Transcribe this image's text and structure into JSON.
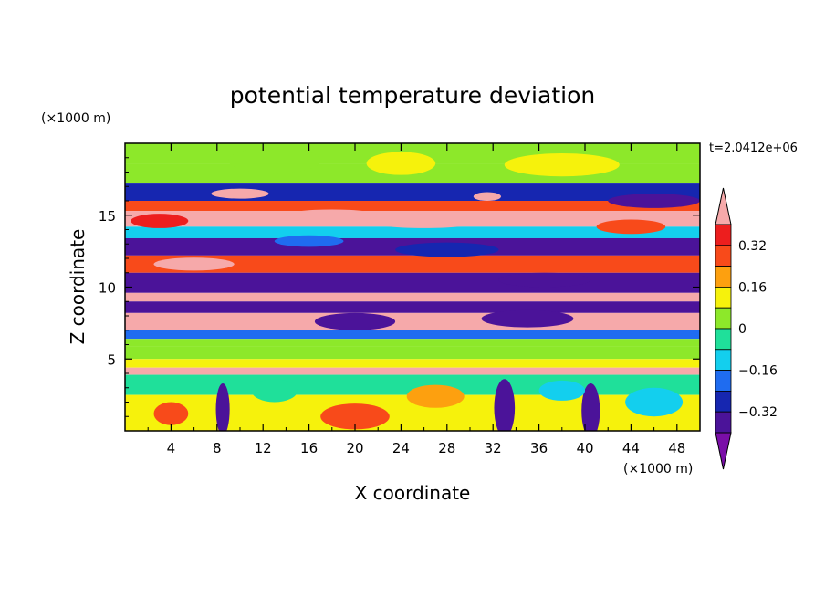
{
  "chart_data": {
    "type": "heatmap",
    "title": "potential temperature deviation",
    "xlabel": "X coordinate",
    "ylabel": "Z coordinate",
    "x_unit": "(×1000 m)",
    "y_unit": "(×1000 m)",
    "time_label": "t=2.0412e+06",
    "xlim": [
      0,
      50
    ],
    "ylim": [
      0,
      20
    ],
    "x_ticks": [
      "4",
      "8",
      "12",
      "16",
      "20",
      "24",
      "28",
      "32",
      "36",
      "40",
      "44",
      "48"
    ],
    "y_ticks": [
      "5",
      "10",
      "15"
    ],
    "colorbar": {
      "tick_labels": [
        "0.32",
        "0.16",
        "0",
        "−0.16",
        "−0.32"
      ],
      "levels": [
        -0.4,
        -0.32,
        -0.24,
        -0.16,
        -0.08,
        0,
        0.08,
        0.16,
        0.24,
        0.32,
        0.4
      ],
      "colors": [
        "#7a0ea8",
        "#4b1399",
        "#1626b0",
        "#1f6cf0",
        "#13cfee",
        "#1fe09a",
        "#8de82a",
        "#f6f20c",
        "#fda00f",
        "#f84a1a",
        "#ed1e1e",
        "#f6a9aa"
      ]
    },
    "bands": [
      {
        "z_top": 20.0,
        "z_bottom": 18.6,
        "value": 0.05
      },
      {
        "z_top": 18.6,
        "z_bottom": 17.2,
        "value": 0.02
      },
      {
        "z_top": 17.2,
        "z_bottom": 16.0,
        "value": -0.3
      },
      {
        "z_top": 16.0,
        "z_bottom": 15.3,
        "value": 0.3
      },
      {
        "z_top": 15.3,
        "z_bottom": 14.2,
        "value": 0.42
      },
      {
        "z_top": 14.2,
        "z_bottom": 13.4,
        "value": -0.12
      },
      {
        "z_top": 13.4,
        "z_bottom": 12.2,
        "value": -0.38
      },
      {
        "z_top": 12.2,
        "z_bottom": 11.0,
        "value": 0.25
      },
      {
        "z_top": 11.0,
        "z_bottom": 9.6,
        "value": -0.36
      },
      {
        "z_top": 9.6,
        "z_bottom": 9.0,
        "value": 0.42
      },
      {
        "z_top": 9.0,
        "z_bottom": 8.2,
        "value": -0.34
      },
      {
        "z_top": 8.2,
        "z_bottom": 7.0,
        "value": 0.42
      },
      {
        "z_top": 7.0,
        "z_bottom": 6.4,
        "value": -0.2
      },
      {
        "z_top": 6.4,
        "z_bottom": 5.9,
        "value": 0.06
      },
      {
        "z_top": 5.9,
        "z_bottom": 5.0,
        "value": 0.05
      },
      {
        "z_top": 5.0,
        "z_bottom": 4.4,
        "value": 0.08
      },
      {
        "z_top": 4.4,
        "z_bottom": 3.9,
        "value": 0.42
      },
      {
        "z_top": 3.9,
        "z_bottom": 2.5,
        "value": -0.02
      },
      {
        "z_top": 2.5,
        "z_bottom": 0.0,
        "value": 0.1
      }
    ],
    "features": [
      {
        "x": 6.0,
        "z": 11.6,
        "rx": 3.5,
        "rz": 0.45,
        "value": 0.42
      },
      {
        "x": 18.0,
        "z": 15.0,
        "rx": 4.0,
        "rz": 0.4,
        "value": 0.42
      },
      {
        "x": 26.0,
        "z": 14.6,
        "rx": 5.0,
        "rz": 0.5,
        "value": 0.42
      },
      {
        "x": 10.0,
        "z": 16.5,
        "rx": 2.5,
        "rz": 0.35,
        "value": 0.42
      },
      {
        "x": 31.5,
        "z": 16.3,
        "rx": 1.2,
        "rz": 0.3,
        "value": 0.42
      },
      {
        "x": 36.5,
        "z": 10.5,
        "rx": 4.0,
        "rz": 0.5,
        "value": -0.38
      },
      {
        "x": 44.0,
        "z": 14.2,
        "rx": 3.0,
        "rz": 0.5,
        "value": 0.28
      },
      {
        "x": 46.0,
        "z": 16.0,
        "rx": 4.0,
        "rz": 0.5,
        "value": -0.38
      },
      {
        "x": 24.0,
        "z": 18.6,
        "rx": 3.0,
        "rz": 0.8,
        "value": 0.08
      },
      {
        "x": 13.0,
        "z": 18.8,
        "rx": 4.0,
        "rz": 0.9,
        "value": 0.02
      },
      {
        "x": 38.0,
        "z": 18.5,
        "rx": 5.0,
        "rz": 0.8,
        "value": 0.1
      },
      {
        "x": 8.5,
        "z": 1.5,
        "rx": 0.6,
        "rz": 1.8,
        "value": -0.4
      },
      {
        "x": 33.0,
        "z": 1.6,
        "rx": 0.9,
        "rz": 2.0,
        "value": -0.4
      },
      {
        "x": 40.5,
        "z": 1.4,
        "rx": 0.8,
        "rz": 1.9,
        "value": -0.4
      },
      {
        "x": 4.0,
        "z": 1.2,
        "rx": 1.5,
        "rz": 0.8,
        "value": 0.3
      },
      {
        "x": 20.0,
        "z": 1.0,
        "rx": 3.0,
        "rz": 0.9,
        "value": 0.3
      },
      {
        "x": 46.0,
        "z": 2.0,
        "rx": 2.5,
        "rz": 1.0,
        "value": -0.1
      },
      {
        "x": 13.0,
        "z": 2.8,
        "rx": 2.0,
        "rz": 0.8,
        "value": -0.05
      },
      {
        "x": 27.0,
        "z": 2.4,
        "rx": 2.5,
        "rz": 0.8,
        "value": 0.2
      },
      {
        "x": 38.0,
        "z": 2.8,
        "rx": 2.0,
        "rz": 0.7,
        "value": -0.12
      },
      {
        "x": 20.0,
        "z": 7.6,
        "rx": 3.5,
        "rz": 0.6,
        "value": -0.36
      },
      {
        "x": 35.0,
        "z": 7.8,
        "rx": 4.0,
        "rz": 0.6,
        "value": -0.36
      },
      {
        "x": 28.0,
        "z": 12.6,
        "rx": 4.5,
        "rz": 0.5,
        "value": -0.3
      },
      {
        "x": 16.0,
        "z": 13.2,
        "rx": 3.0,
        "rz": 0.4,
        "value": -0.2
      },
      {
        "x": 3.0,
        "z": 14.6,
        "rx": 2.5,
        "rz": 0.5,
        "value": 0.35
      }
    ]
  }
}
